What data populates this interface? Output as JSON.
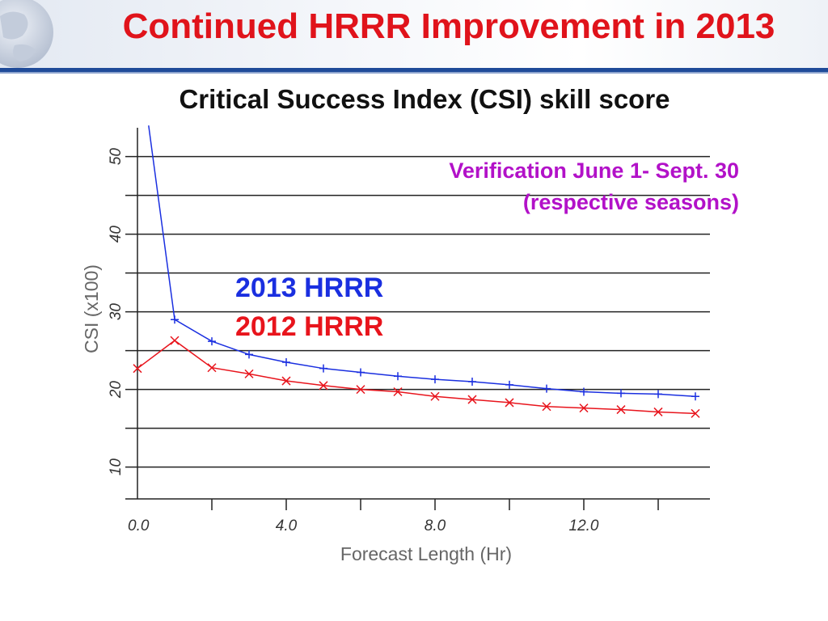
{
  "slide": {
    "title": "Continued HRRR Improvement in 2013",
    "chart_heading": "Critical Success Index (CSI) skill score",
    "annotation_line1": "Verification June 1- Sept. 30",
    "annotation_line2": "(respective seasons)",
    "accent_color": "#e0131b",
    "rule_color": "#1f4b99",
    "annotation_color": "#b211c8"
  },
  "chart_data": {
    "type": "line",
    "title": "Critical Success Index (CSI) skill score",
    "xlabel": "Forecast Length (Hr)",
    "ylabel": "CSI (x100)",
    "xlim": [
      0,
      15
    ],
    "ylim": [
      6,
      54
    ],
    "x_ticks": [
      "0.0",
      "4.0",
      "8.0",
      "12.0"
    ],
    "y_ticks": [
      "10",
      "20",
      "30",
      "40",
      "50"
    ],
    "grid": "horizontal",
    "legend_placement": "center-left",
    "series": [
      {
        "name": "2013 HRRR",
        "color": "#1a2fe0",
        "marker": "plus",
        "x": [
          0.3,
          1,
          2,
          3,
          4,
          5,
          6,
          7,
          8,
          9,
          10,
          11,
          12,
          13,
          14,
          15
        ],
        "y": [
          54,
          29.0,
          26.2,
          24.5,
          23.5,
          22.7,
          22.2,
          21.7,
          21.3,
          21.0,
          20.6,
          20.1,
          19.7,
          19.5,
          19.4,
          19.1
        ]
      },
      {
        "name": "2012 HRRR",
        "color": "#e8141c",
        "marker": "x",
        "x": [
          0,
          1,
          2,
          3,
          4,
          5,
          6,
          7,
          8,
          9,
          10,
          11,
          12,
          13,
          14,
          15
        ],
        "y": [
          22.7,
          26.3,
          22.8,
          22.0,
          21.1,
          20.5,
          20.0,
          19.7,
          19.1,
          18.7,
          18.3,
          17.8,
          17.6,
          17.4,
          17.1,
          16.9
        ]
      }
    ]
  }
}
